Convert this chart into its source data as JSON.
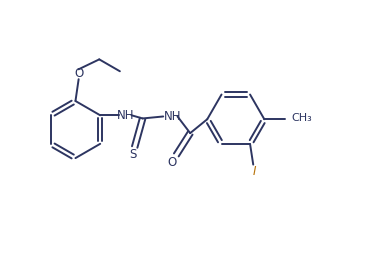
{
  "background_color": "#ffffff",
  "line_color": "#2d3561",
  "text_color": "#2d3561",
  "label_color_I": "#b8730a",
  "line_width": 1.4,
  "font_size": 8.5,
  "figsize": [
    3.69,
    2.71
  ],
  "dpi": 100,
  "xlim": [
    0,
    9.2
  ],
  "ylim": [
    0,
    6.8
  ]
}
